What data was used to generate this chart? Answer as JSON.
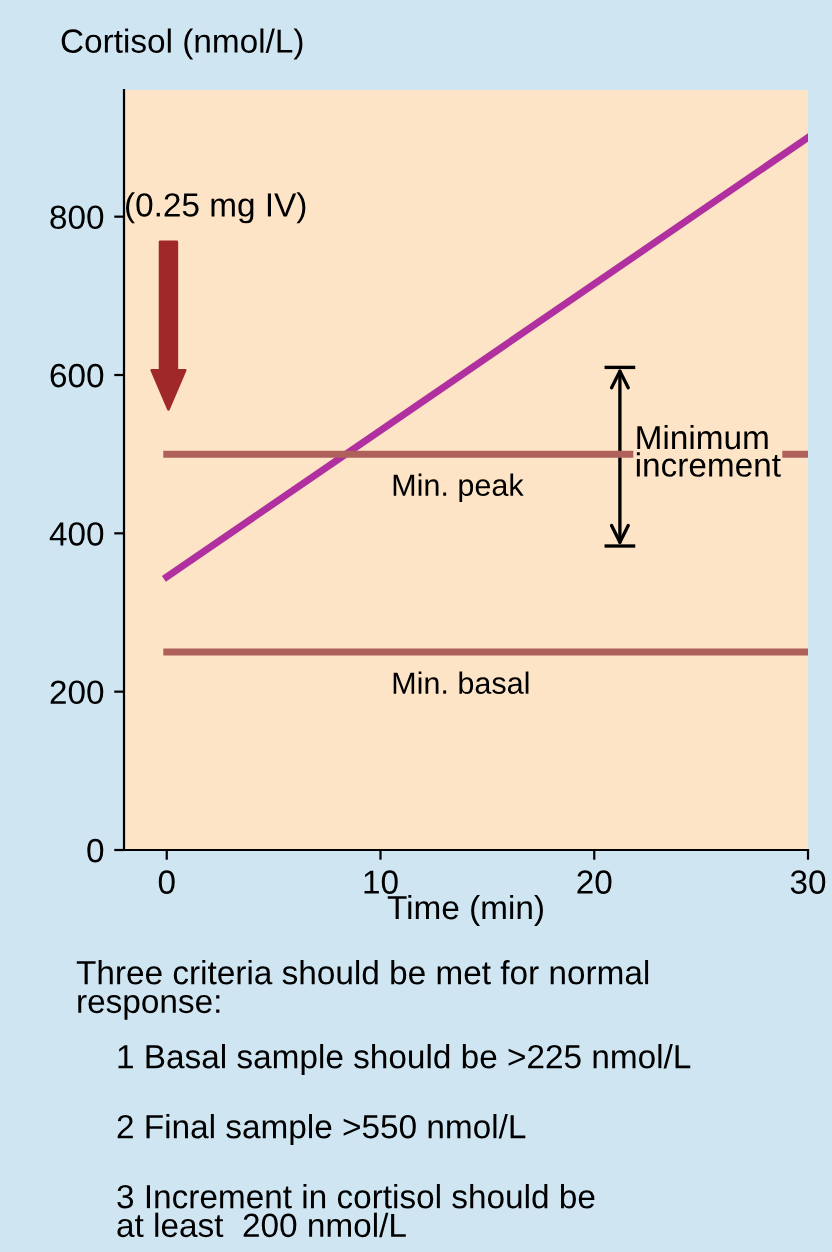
{
  "chart_data": {
    "type": "line",
    "ylabel": "Cortisol (nmol/L)",
    "xlabel": "Time (min)",
    "series": [
      {
        "type": "line",
        "color": "#b0309f",
        "x": [
          0,
          30
        ],
        "values": [
          345,
          900
        ]
      }
    ],
    "xlim": [
      -2,
      30
    ],
    "xticks": [
      0,
      10,
      20,
      30
    ],
    "ylim": [
      0,
      960
    ],
    "yticks": [
      0,
      200,
      400,
      600,
      800
    ],
    "ref_lines": [
      {
        "axis": "y",
        "value": 500,
        "label": "Min. peak",
        "color": "#b0605a"
      },
      {
        "axis": "y",
        "value": 250,
        "label": "Min. basal",
        "color": "#b0605a"
      }
    ],
    "annotations": [
      "(0.25 mg IV)",
      {
        "text": "Minimum\nincrement",
        "x": 21.5,
        "y": 500
      },
      "Three criteria should be met for normal\nresponse:",
      "1 Basal sample should be >225 nmol/L",
      "2 Final sample >550 nmol/L",
      "3 Increment in cortisol should be\nat least  200 nmol/L"
    ],
    "grid": false
  }
}
